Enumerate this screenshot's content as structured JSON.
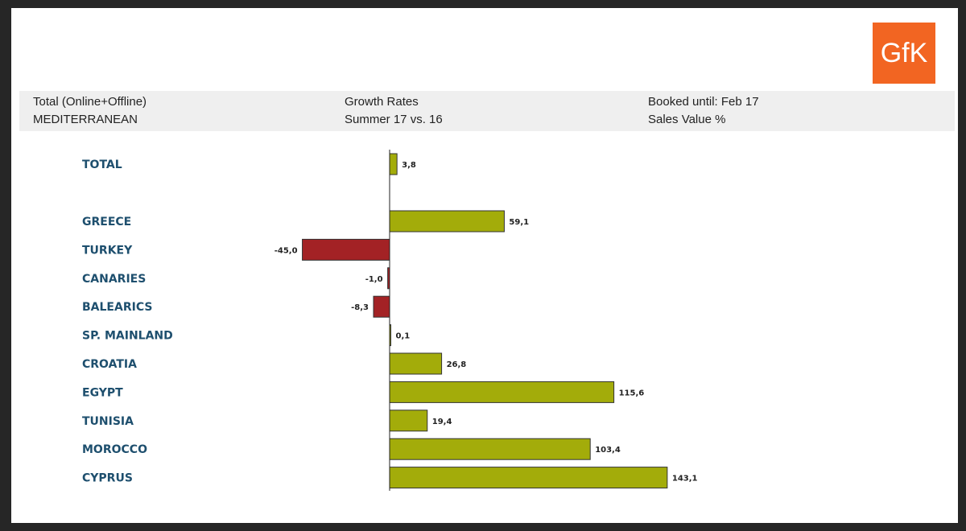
{
  "logo": {
    "text": "GfK",
    "color": "#f26522"
  },
  "header": {
    "left_line1": "Total (Online+Offline)",
    "left_line2": "MEDITERRANEAN",
    "mid_line1": "Growth Rates",
    "mid_line2": "Summer 17 vs. 16",
    "right_line1": "Booked until: Feb 17",
    "right_line2": "Sales Value %"
  },
  "colors": {
    "positive": "#a3ac0a",
    "negative": "#a32225",
    "label": "#1e4f6e"
  },
  "chart_data": {
    "type": "bar",
    "orientation": "horizontal",
    "categories": [
      "TOTAL",
      "GREECE",
      "TURKEY",
      "CANARIES",
      "BALEARICS",
      "SP. MAINLAND",
      "CROATIA",
      "EGYPT",
      "TUNISIA",
      "MOROCCO",
      "CYPRUS"
    ],
    "values": [
      3.8,
      59.1,
      -45.0,
      -1.0,
      -8.3,
      0.1,
      26.8,
      115.6,
      19.4,
      103.4,
      143.1
    ],
    "value_labels": [
      "3,8",
      "59,1",
      "-45,0",
      "-1,0",
      "-8,3",
      "0,1",
      "26,8",
      "115,6",
      "19,4",
      "103,4",
      "143,1"
    ],
    "grid": false,
    "legend": "none"
  }
}
